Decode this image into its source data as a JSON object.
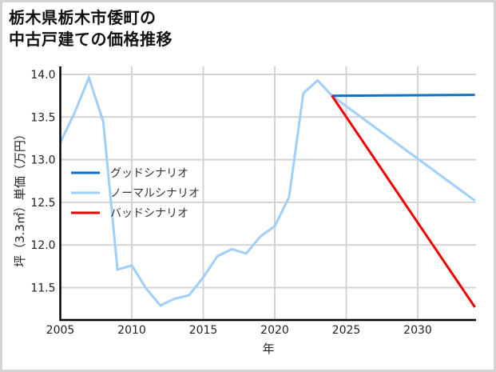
{
  "title": {
    "line1": "栃木県栃木市倭町の",
    "line2": "中古戸建ての価格推移"
  },
  "colors": {
    "good": "#0a72c8",
    "normal": "#9fcffb",
    "bad": "#f20000",
    "grid": "#d3d3d3",
    "axis": "#000000"
  },
  "chart_data": {
    "type": "line",
    "title": "栃木県栃木市倭町の中古戸建ての価格推移",
    "xlabel": "年",
    "ylabel": "坪（3.3㎡）単価（万円）",
    "xlim": [
      2005,
      2034
    ],
    "ylim": [
      11.12,
      14.09
    ],
    "xticks": [
      2005,
      2010,
      2015,
      2020,
      2025,
      2030
    ],
    "yticks": [
      11.5,
      12.0,
      12.5,
      13.0,
      13.5,
      14.0
    ],
    "xtick_labels": [
      "2005",
      "2010",
      "2015",
      "2020",
      "2025",
      "2030"
    ],
    "ytick_labels": [
      "11.5",
      "12.0",
      "12.5",
      "13.0",
      "13.5",
      "14.0"
    ],
    "grid": true,
    "legend_position": "center-left",
    "series": [
      {
        "name": "グッドシナリオ",
        "color": "#0a72c8",
        "x": [
          2024,
          2034
        ],
        "values": [
          13.75,
          13.76
        ]
      },
      {
        "name": "ノーマルシナリオ",
        "color": "#9fcffb",
        "x": [
          2005,
          2006,
          2007,
          2008,
          2009,
          2010,
          2011,
          2012,
          2013,
          2014,
          2015,
          2016,
          2017,
          2018,
          2019,
          2020,
          2021,
          2022,
          2023,
          2024,
          2034
        ],
        "values": [
          13.2,
          13.55,
          13.96,
          13.45,
          11.71,
          11.76,
          11.49,
          11.29,
          11.37,
          11.41,
          11.62,
          11.87,
          11.95,
          11.9,
          12.1,
          12.22,
          12.56,
          13.78,
          13.93,
          13.75,
          12.52
        ]
      },
      {
        "name": "バッドシナリオ",
        "color": "#f20000",
        "x": [
          2024,
          2034
        ],
        "values": [
          13.75,
          11.27
        ]
      }
    ]
  },
  "legend": [
    {
      "label": "グッドシナリオ",
      "color": "#0a72c8"
    },
    {
      "label": "ノーマルシナリオ",
      "color": "#9fcffb"
    },
    {
      "label": "バッドシナリオ",
      "color": "#f20000"
    }
  ]
}
